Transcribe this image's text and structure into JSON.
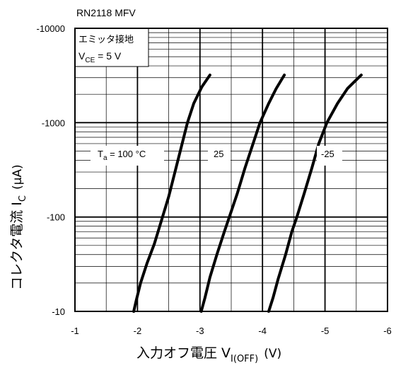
{
  "page": {
    "header": "RN2118 MFV"
  },
  "chart_data": {
    "type": "line",
    "title": "RN2118 MFV",
    "xlabel": "入力オフ電圧 V",
    "xlabel_sub": "I(OFF)",
    "xlabel_unit": "(V)",
    "ylabel": "コレクタ電流 I",
    "ylabel_sub": "C",
    "ylabel_unit": "(μA)",
    "x_range": [
      -1,
      -6
    ],
    "y_range": [
      -10,
      -10000
    ],
    "y_scale": "log",
    "grid": true,
    "x_ticks": [
      "-1",
      "-2",
      "-3",
      "-4",
      "-5",
      "-6"
    ],
    "y_ticks": [
      "-10",
      "-100",
      "-1000",
      "-10000"
    ],
    "conditions": {
      "line1": "エミッタ接地",
      "line2_prefix": "V",
      "line2_sub": "CE",
      "line2_suffix": " = 5 V"
    },
    "series": [
      {
        "name": "Ta = 100 °C",
        "label_prefix": "T",
        "label_sub": "a",
        "label_suffix": " = 100 °C",
        "points": [
          [
            -1.94,
            -10
          ],
          [
            -1.98,
            -13
          ],
          [
            -2.05,
            -20
          ],
          [
            -2.15,
            -32
          ],
          [
            -2.27,
            -52
          ],
          [
            -2.4,
            -100
          ],
          [
            -2.5,
            -165
          ],
          [
            -2.6,
            -300
          ],
          [
            -2.7,
            -550
          ],
          [
            -2.8,
            -1000
          ],
          [
            -2.9,
            -1600
          ],
          [
            -3.03,
            -2400
          ],
          [
            -3.16,
            -3200
          ]
        ]
      },
      {
        "name": "25",
        "label_prefix": "25",
        "label_sub": "",
        "label_suffix": "",
        "points": [
          [
            -3.02,
            -10
          ],
          [
            -3.08,
            -14
          ],
          [
            -3.16,
            -23
          ],
          [
            -3.27,
            -40
          ],
          [
            -3.39,
            -70
          ],
          [
            -3.47,
            -100
          ],
          [
            -3.6,
            -180
          ],
          [
            -3.72,
            -330
          ],
          [
            -3.85,
            -600
          ],
          [
            -3.96,
            -1000
          ],
          [
            -4.1,
            -1600
          ],
          [
            -4.22,
            -2300
          ],
          [
            -4.35,
            -3200
          ]
        ]
      },
      {
        "name": "-25",
        "label_prefix": "-25",
        "label_sub": "",
        "label_suffix": "",
        "points": [
          [
            -4.1,
            -10
          ],
          [
            -4.17,
            -14
          ],
          [
            -4.25,
            -22
          ],
          [
            -4.37,
            -40
          ],
          [
            -4.47,
            -70
          ],
          [
            -4.55,
            -100
          ],
          [
            -4.67,
            -180
          ],
          [
            -4.79,
            -330
          ],
          [
            -4.9,
            -600
          ],
          [
            -5.03,
            -1000
          ],
          [
            -5.2,
            -1600
          ],
          [
            -5.36,
            -2300
          ],
          [
            -5.58,
            -3200
          ]
        ]
      }
    ]
  }
}
